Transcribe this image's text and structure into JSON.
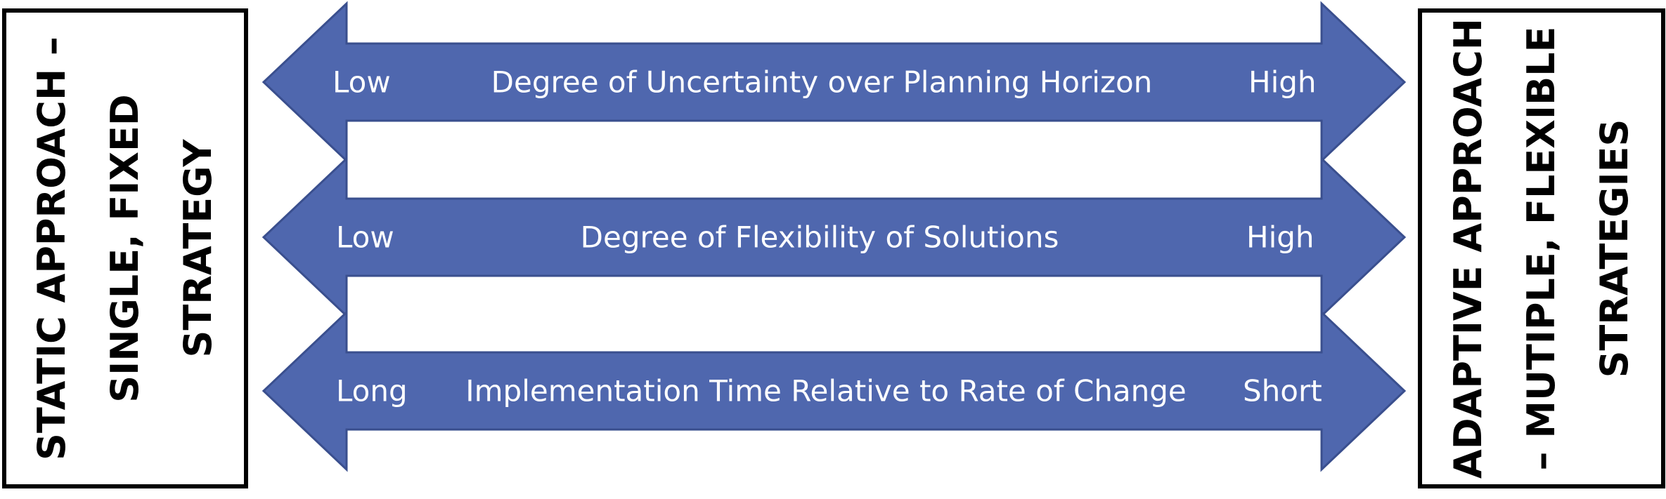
{
  "left_box": {
    "lines": [
      "STATIC APPROACH –",
      "SINGLE, FIXED",
      "STRATEGY"
    ]
  },
  "right_box": {
    "lines": [
      "ADAPTIVE APPROACH",
      "– MUTIPLE, FLEXIBLE",
      "STRATEGIES"
    ]
  },
  "arrows": [
    {
      "left": "Low",
      "center": "Degree of Uncertainty over Planning Horizon",
      "right": "High"
    },
    {
      "left": "Low",
      "center": "Degree of Flexibility of Solutions",
      "right": "High"
    },
    {
      "left": "Long",
      "center": "Implementation Time Relative to Rate of Change",
      "right": "Short"
    }
  ],
  "colors": {
    "arrow_fill": "#4F67AE",
    "arrow_stroke": "#3A4F8E",
    "text_on_arrow": "#FFFFFF",
    "box_border": "#000000"
  }
}
